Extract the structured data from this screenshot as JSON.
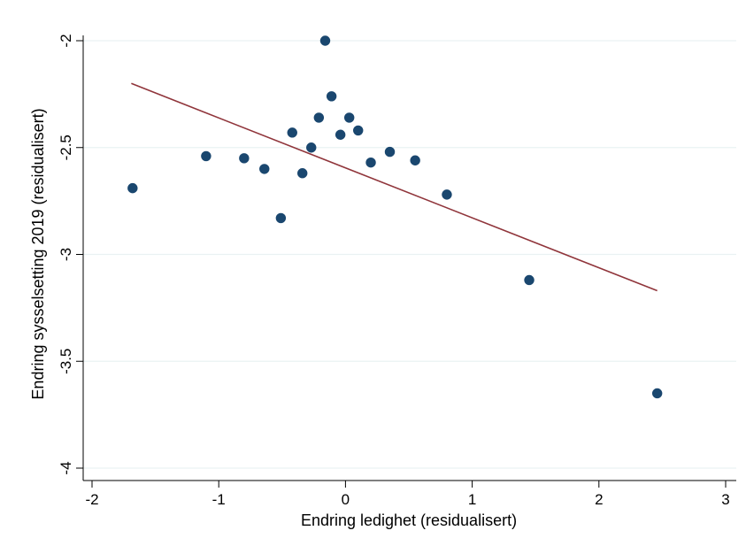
{
  "chart_data": {
    "type": "scatter",
    "title": "",
    "xlabel": "Endring ledighet (residualisert)",
    "ylabel": "Endring sysselsetting 2019 (residualisert)",
    "xlim": [
      -2,
      3
    ],
    "ylim": [
      -4,
      -2
    ],
    "xticks": [
      -2,
      -1,
      0,
      1,
      2,
      3
    ],
    "xtick_labels": [
      "-2",
      "-1",
      "0",
      "1",
      "2",
      "3"
    ],
    "yticks": [
      -2,
      -2.5,
      -3,
      -3.5,
      -4
    ],
    "ytick_labels": [
      "-2",
      "-2.5",
      "-3",
      "-3.5",
      "-4"
    ],
    "grid": true,
    "series": [
      {
        "type": "scatter",
        "color": "#1a476f",
        "points": [
          {
            "x": -1.68,
            "y": -2.69
          },
          {
            "x": -1.1,
            "y": -2.54
          },
          {
            "x": -0.8,
            "y": -2.55
          },
          {
            "x": -0.64,
            "y": -2.6
          },
          {
            "x": -0.51,
            "y": -2.83
          },
          {
            "x": -0.42,
            "y": -2.43
          },
          {
            "x": -0.34,
            "y": -2.62
          },
          {
            "x": -0.27,
            "y": -2.5
          },
          {
            "x": -0.21,
            "y": -2.36
          },
          {
            "x": -0.16,
            "y": -2.0
          },
          {
            "x": -0.11,
            "y": -2.26
          },
          {
            "x": -0.04,
            "y": -2.44
          },
          {
            "x": 0.03,
            "y": -2.36
          },
          {
            "x": 0.1,
            "y": -2.42
          },
          {
            "x": 0.2,
            "y": -2.57
          },
          {
            "x": 0.35,
            "y": -2.52
          },
          {
            "x": 0.55,
            "y": -2.56
          },
          {
            "x": 0.8,
            "y": -2.72
          },
          {
            "x": 1.45,
            "y": -3.12
          },
          {
            "x": 2.46,
            "y": -3.65
          }
        ]
      },
      {
        "type": "line",
        "color": "#90353b",
        "x": [
          -1.69,
          2.46
        ],
        "y": [
          -2.2,
          -3.17
        ]
      }
    ]
  }
}
